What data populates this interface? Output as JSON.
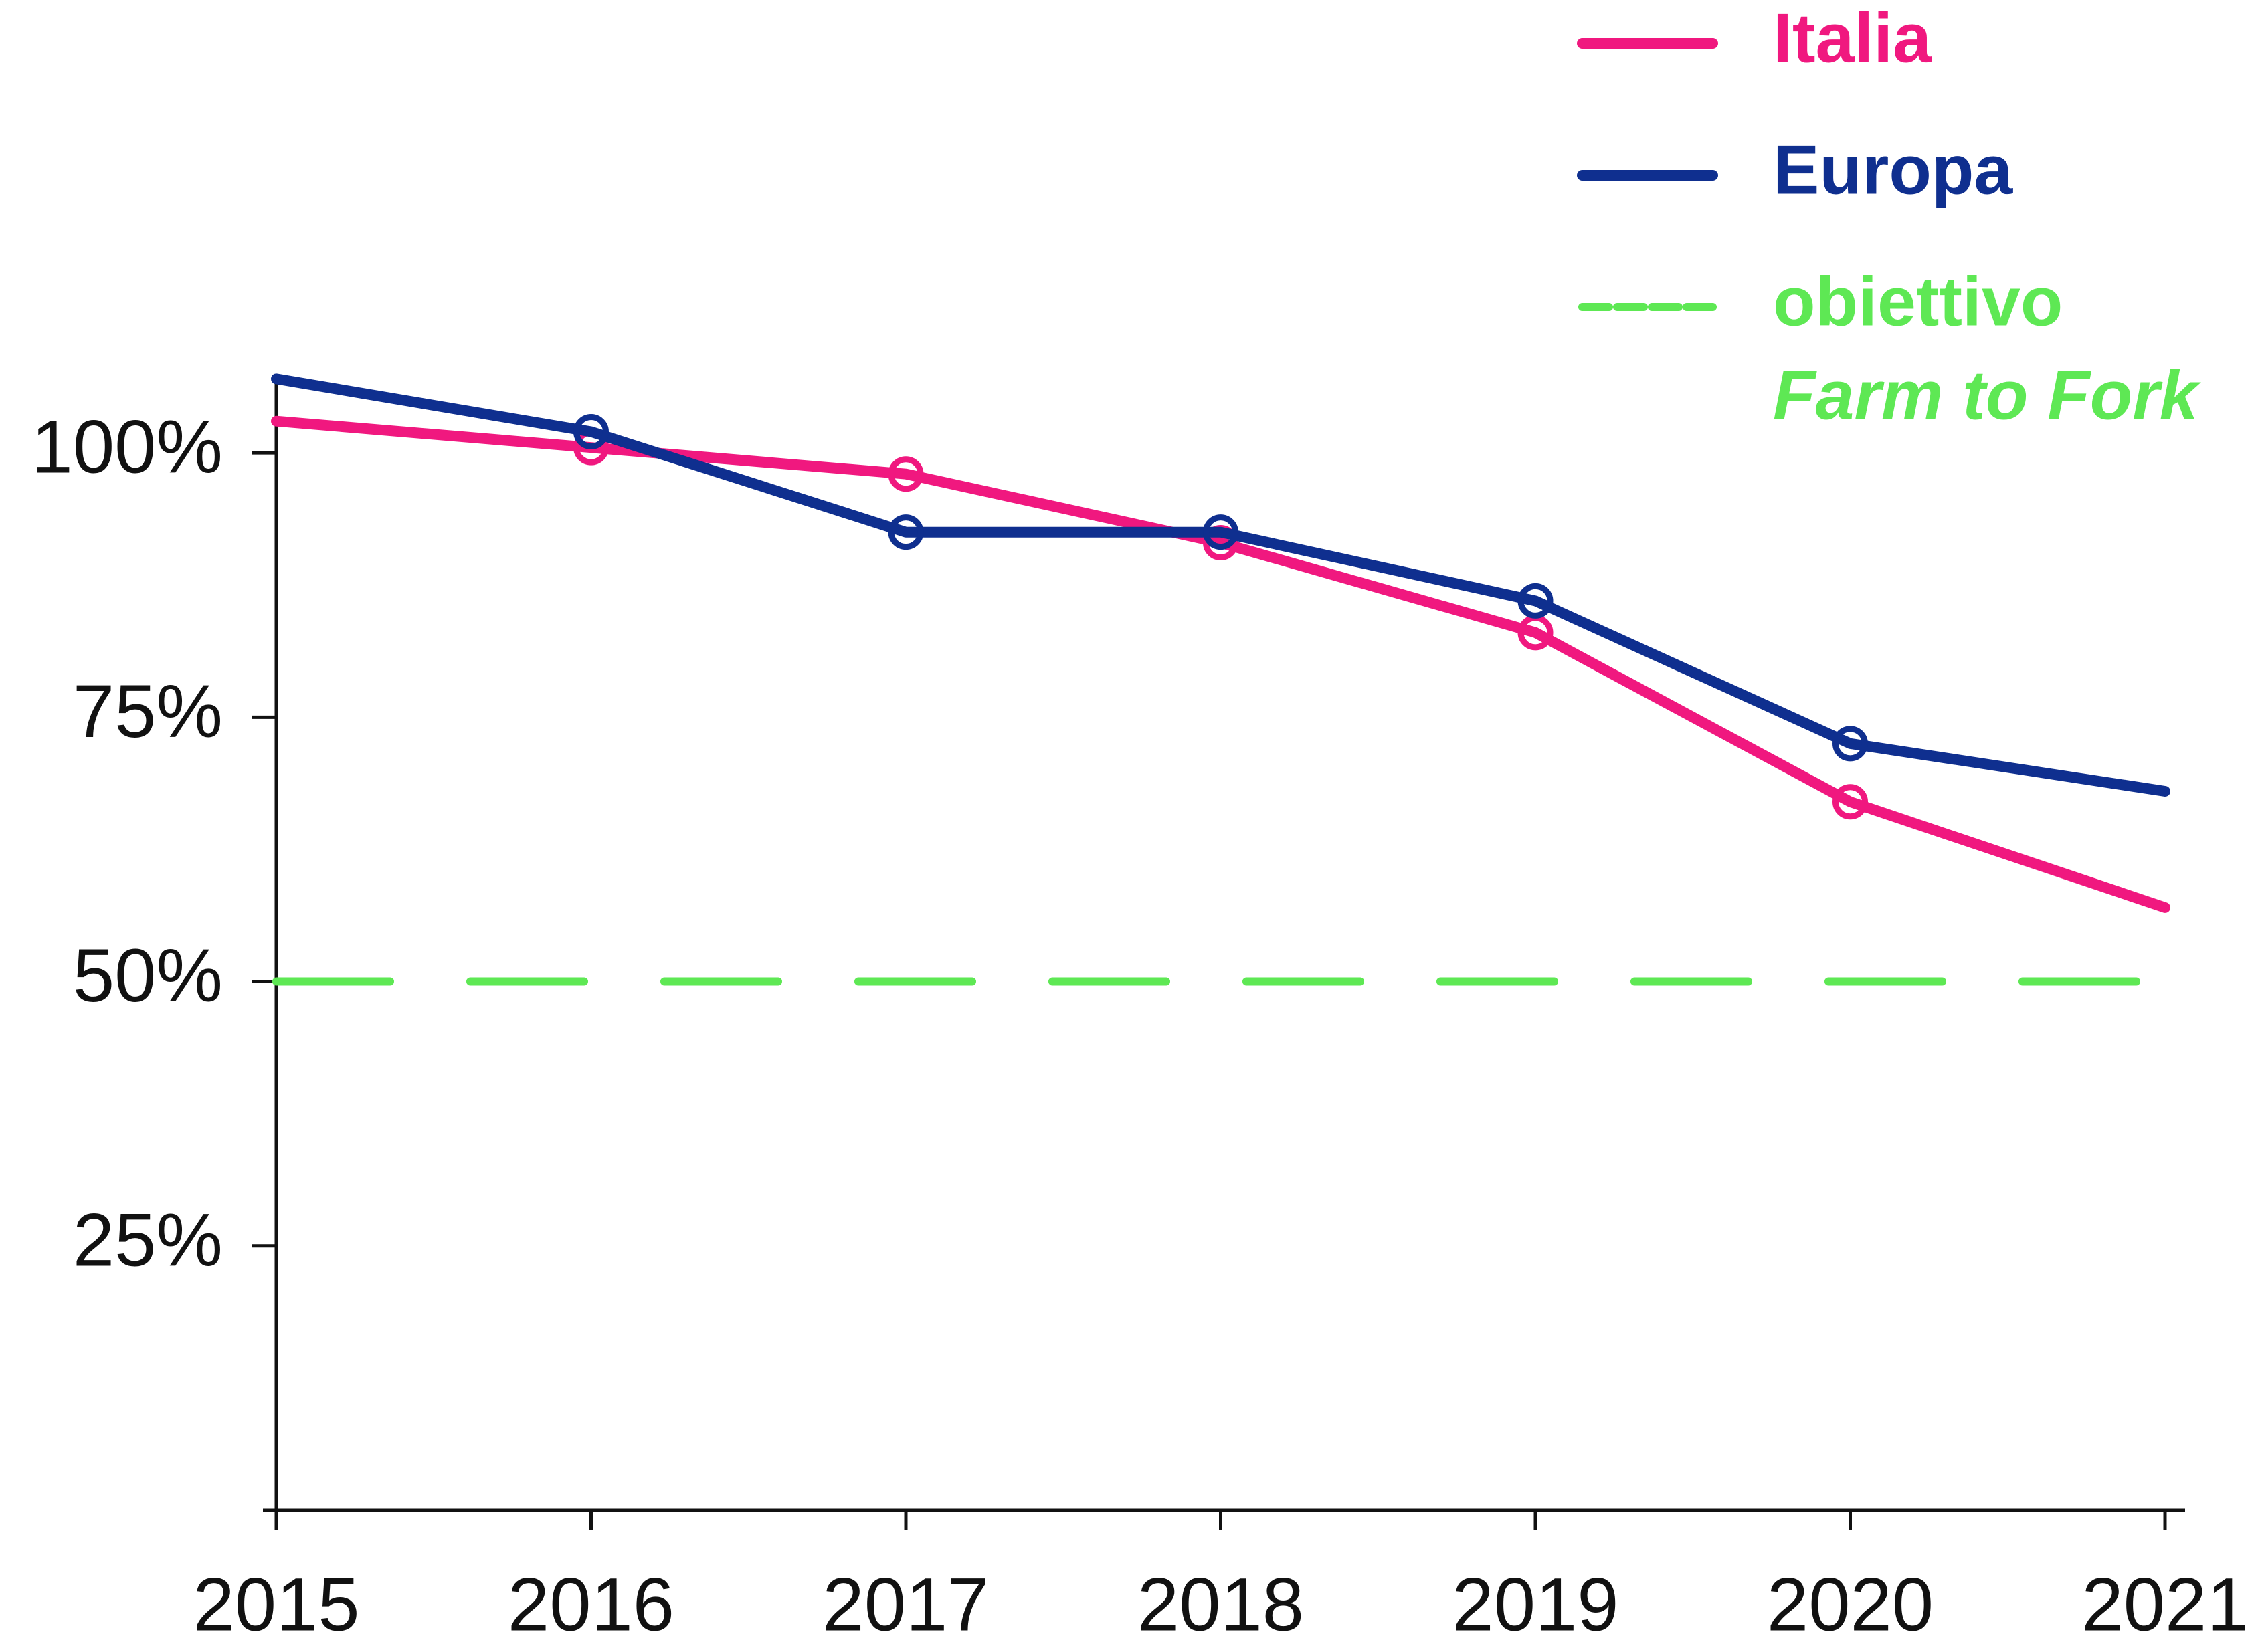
{
  "chart_data": {
    "type": "line",
    "x": [
      2015,
      2016,
      2017,
      2018,
      2019,
      2020,
      2021
    ],
    "xlim": [
      2015,
      2021
    ],
    "xticks": [
      2015,
      2016,
      2017,
      2018,
      2019,
      2020,
      2021
    ],
    "ylim": [
      0,
      110
    ],
    "yticks": [
      {
        "value": 25,
        "label": "25%"
      },
      {
        "value": 50,
        "label": "50%"
      },
      {
        "value": 75,
        "label": "75%"
      },
      {
        "value": 100,
        "label": "100%"
      }
    ],
    "series": [
      {
        "name": "Italia",
        "color": "#f0187f",
        "values": [
          103,
          100.5,
          98,
          91.5,
          83,
          67,
          57
        ]
      },
      {
        "name": "Europa",
        "color": "#0f2f8f",
        "values": [
          107,
          102,
          92.5,
          92.5,
          86,
          72.5,
          68
        ]
      },
      {
        "name": "obiettivo",
        "note": "Farm to Fork",
        "color": "#5ee854",
        "dashed": true,
        "values": [
          50,
          50,
          50,
          50,
          50,
          50,
          50
        ]
      }
    ]
  }
}
